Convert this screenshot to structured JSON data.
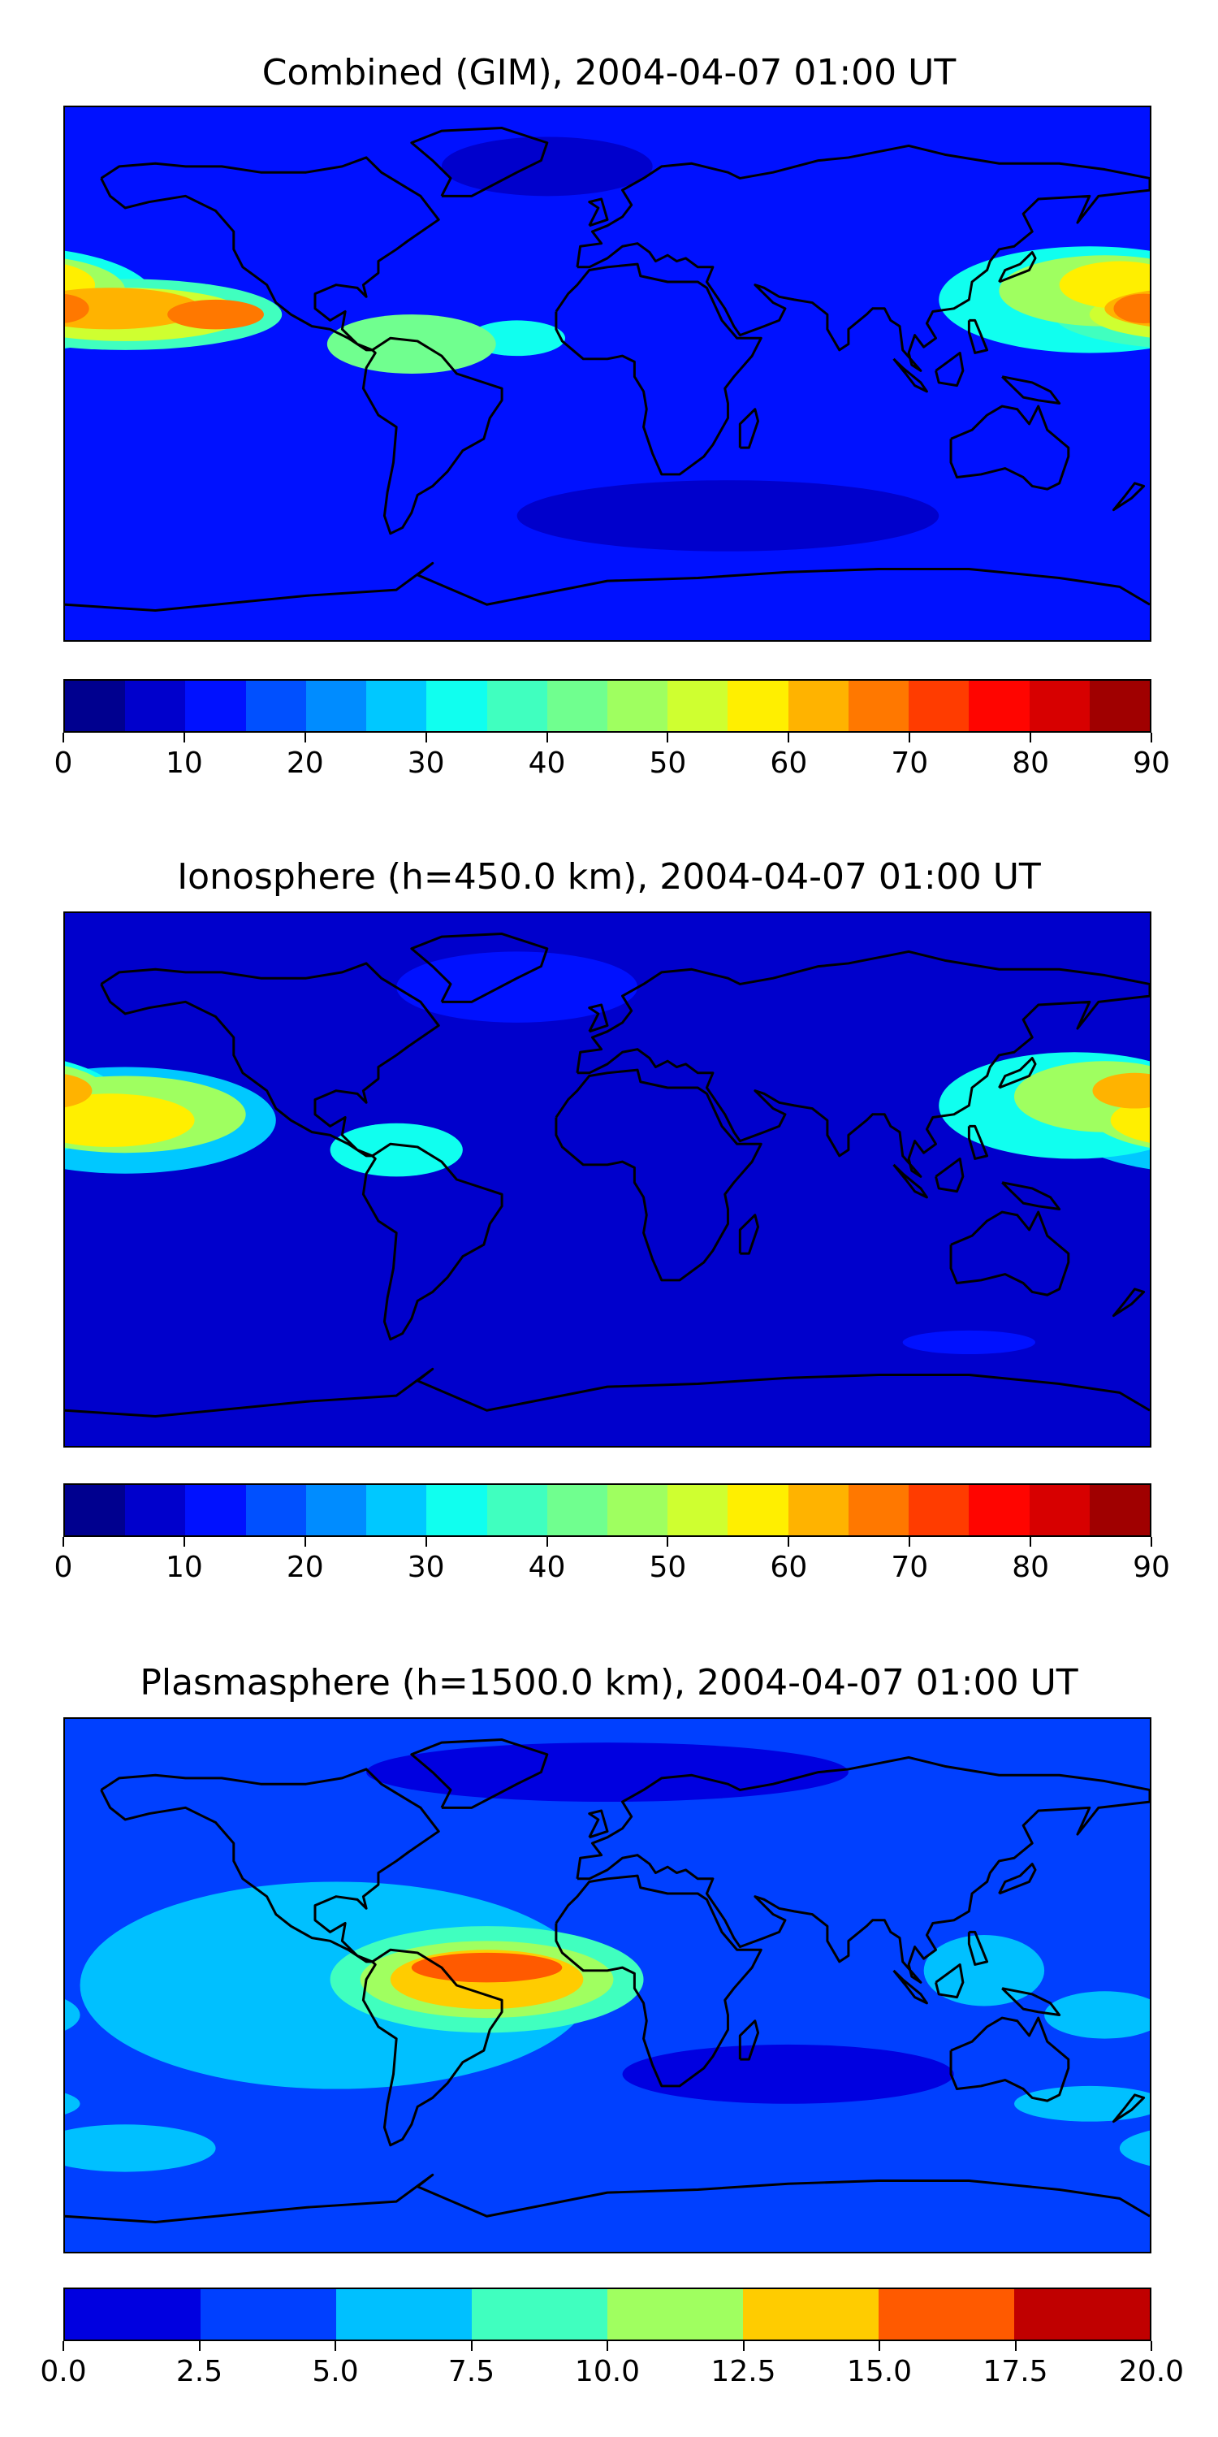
{
  "colors": {
    "jet18": [
      "#00008f",
      "#0000cc",
      "#0011ff",
      "#0050ff",
      "#008cff",
      "#00c8ff",
      "#10ffef",
      "#40ffbf",
      "#70ff8f",
      "#9fff60",
      "#cfff30",
      "#ffef00",
      "#ffb300",
      "#ff7800",
      "#ff3c00",
      "#ff0500",
      "#d70000",
      "#a00000"
    ],
    "jet8": [
      "#0000e0",
      "#0040ff",
      "#00c0ff",
      "#40ffbf",
      "#a0ff60",
      "#ffcc00",
      "#ff5a00",
      "#c00000"
    ]
  },
  "chart_data": [
    {
      "type": "heatmap",
      "title": "Combined (GIM), 2004-04-07 01:00 UT",
      "colorbar": {
        "range": [
          0,
          90
        ],
        "step": 5,
        "ticks": [
          "0",
          "10",
          "20",
          "30",
          "40",
          "50",
          "60",
          "70",
          "80",
          "90"
        ]
      },
      "background_level": 10,
      "features": [
        {
          "lon": -160,
          "lat": 20,
          "rx": 52,
          "ry": 12,
          "level": 35
        },
        {
          "lon": -160,
          "lat": 20,
          "rx": 40,
          "ry": 9,
          "level": 50
        },
        {
          "lon": -165,
          "lat": 22,
          "rx": 30,
          "ry": 7,
          "level": 60
        },
        {
          "lon": -130,
          "lat": 20,
          "rx": 16,
          "ry": 5,
          "level": 65
        },
        {
          "lon": -65,
          "lat": 10,
          "rx": 28,
          "ry": 10,
          "level": 40
        },
        {
          "lon": -30,
          "lat": 12,
          "rx": 16,
          "ry": 6,
          "level": 30
        },
        {
          "lon": 160,
          "lat": 25,
          "rx": 50,
          "ry": 18,
          "level": 30
        },
        {
          "lon": 165,
          "lat": 28,
          "rx": 35,
          "ry": 12,
          "level": 45
        },
        {
          "lon": 170,
          "lat": 30,
          "rx": 20,
          "ry": 8,
          "level": 55
        },
        {
          "lon": 178,
          "lat": 22,
          "rx": 10,
          "ry": 5,
          "level": 65
        },
        {
          "lon": -20,
          "lat": 70,
          "rx": 35,
          "ry": 10,
          "level": 5
        },
        {
          "lon": 40,
          "lat": -48,
          "rx": 70,
          "ry": 12,
          "level": 5
        }
      ]
    },
    {
      "type": "heatmap",
      "title": "Ionosphere  (h=450.0 km), 2004-04-07 01:00 UT",
      "colorbar": {
        "range": [
          0,
          90
        ],
        "step": 5,
        "ticks": [
          "0",
          "10",
          "20",
          "30",
          "40",
          "50",
          "60",
          "70",
          "80",
          "90"
        ]
      },
      "background_level": 5,
      "features": [
        {
          "lon": -160,
          "lat": 20,
          "rx": 50,
          "ry": 18,
          "level": 25
        },
        {
          "lon": -160,
          "lat": 22,
          "rx": 40,
          "ry": 13,
          "level": 45
        },
        {
          "lon": -165,
          "lat": 20,
          "rx": 28,
          "ry": 9,
          "level": 55
        },
        {
          "lon": -70,
          "lat": 10,
          "rx": 22,
          "ry": 9,
          "level": 30
        },
        {
          "lon": 155,
          "lat": 25,
          "rx": 45,
          "ry": 18,
          "level": 30
        },
        {
          "lon": 165,
          "lat": 28,
          "rx": 30,
          "ry": 12,
          "level": 45
        },
        {
          "lon": 175,
          "lat": 30,
          "rx": 14,
          "ry": 6,
          "level": 60
        },
        {
          "lon": -30,
          "lat": 65,
          "rx": 40,
          "ry": 12,
          "level": 10
        },
        {
          "lon": 120,
          "lat": -55,
          "rx": 22,
          "ry": 4,
          "level": 10
        }
      ]
    },
    {
      "type": "heatmap",
      "title": "Plasmasphere (h=1500.0 km), 2004-04-07 01:00 UT",
      "colorbar": {
        "range": [
          0,
          20
        ],
        "step": 2.5,
        "ticks": [
          "0.0",
          "2.5",
          "5.0",
          "7.5",
          "10.0",
          "12.5",
          "15.0",
          "17.5",
          "20.0"
        ]
      },
      "background_level": 2.5,
      "features": [
        {
          "lon": -90,
          "lat": 0,
          "rx": 85,
          "ry": 35,
          "level": 5
        },
        {
          "lon": -40,
          "lat": 2,
          "rx": 52,
          "ry": 18,
          "level": 7.5
        },
        {
          "lon": -40,
          "lat": 2,
          "rx": 42,
          "ry": 13,
          "level": 10
        },
        {
          "lon": -40,
          "lat": 2,
          "rx": 32,
          "ry": 10,
          "level": 12.5
        },
        {
          "lon": -40,
          "lat": 6,
          "rx": 25,
          "ry": 5,
          "level": 15
        },
        {
          "lon": 125,
          "lat": 5,
          "rx": 20,
          "ry": 12,
          "level": 5
        },
        {
          "lon": 165,
          "lat": -10,
          "rx": 20,
          "ry": 8,
          "level": 5
        },
        {
          "lon": 0,
          "lat": 72,
          "rx": 80,
          "ry": 10,
          "level": 0
        },
        {
          "lon": 60,
          "lat": -30,
          "rx": 55,
          "ry": 10,
          "level": 0
        },
        {
          "lon": -160,
          "lat": -55,
          "rx": 30,
          "ry": 8,
          "level": 5
        },
        {
          "lon": 160,
          "lat": -40,
          "rx": 25,
          "ry": 6,
          "level": 5
        }
      ]
    }
  ]
}
